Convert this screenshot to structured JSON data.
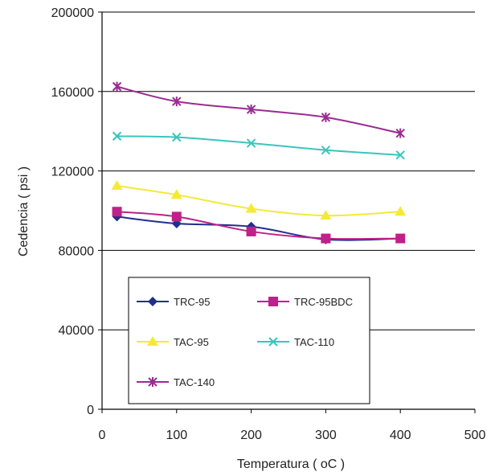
{
  "chart_data": {
    "type": "line",
    "title": "",
    "xlabel": "Temperatura ( oC )",
    "ylabel": "Cedencia ( psi )",
    "xlim": [
      0,
      500
    ],
    "ylim": [
      0,
      200000
    ],
    "x_ticks": [
      0,
      100,
      200,
      300,
      400,
      500
    ],
    "y_ticks": [
      0,
      40000,
      80000,
      120000,
      160000,
      200000
    ],
    "grid": "horizontal",
    "legend_position": "bottom-left",
    "series": [
      {
        "name": "TRC-95",
        "color": "#1f2f8f",
        "marker": "diamond",
        "x": [
          20,
          100,
          200,
          300,
          400
        ],
        "y": [
          97000,
          93500,
          92000,
          85500,
          86000
        ]
      },
      {
        "name": "TRC-95BDC",
        "color": "#c0208a",
        "marker": "square",
        "x": [
          20,
          100,
          200,
          300,
          400
        ],
        "y": [
          99500,
          97000,
          89500,
          86000,
          86000
        ]
      },
      {
        "name": "TAC-95",
        "color": "#f4ea36",
        "marker": "triangle",
        "x": [
          20,
          100,
          200,
          300,
          400
        ],
        "y": [
          112500,
          108000,
          101000,
          97500,
          99500
        ]
      },
      {
        "name": "TAC-110",
        "color": "#3cc4be",
        "marker": "x",
        "x": [
          20,
          100,
          200,
          300,
          400
        ],
        "y": [
          137500,
          137000,
          134000,
          130500,
          128000
        ]
      },
      {
        "name": "TAC-140",
        "color": "#9a2c90",
        "marker": "star",
        "x": [
          20,
          100,
          200,
          300,
          400
        ],
        "y": [
          162500,
          155000,
          151000,
          147000,
          139000
        ]
      }
    ]
  }
}
